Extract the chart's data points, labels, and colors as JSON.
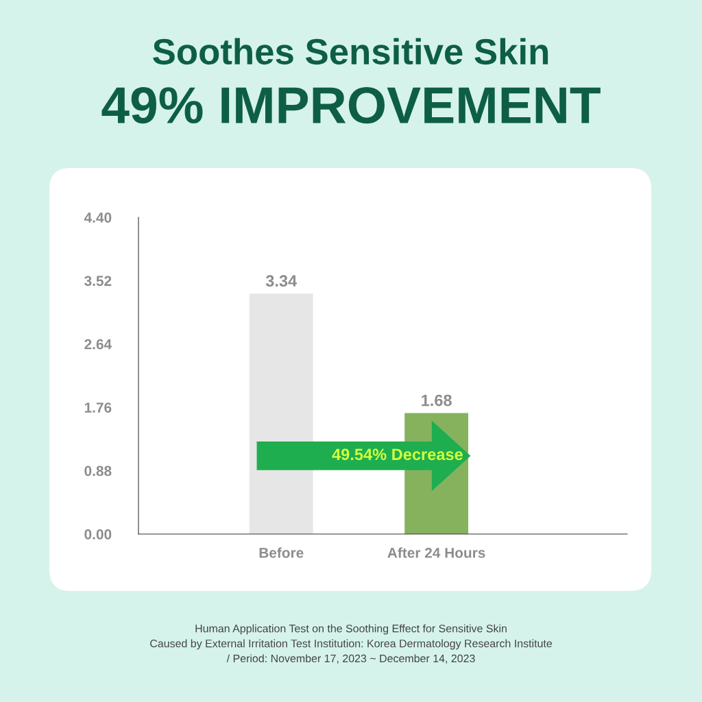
{
  "chart_data": {
    "type": "bar",
    "title": "Soothes Sensitive Skin",
    "subtitle": "49% IMPROVEMENT",
    "categories": [
      "Before",
      "After 24 Hours"
    ],
    "values": [
      3.34,
      1.68
    ],
    "colors": [
      "#e6e6e6",
      "#86b25e"
    ],
    "ylim": [
      0,
      4.4
    ],
    "yticks": [
      {
        "value": 0,
        "label": "0.00"
      },
      {
        "value": 0.88,
        "label": "0.88"
      },
      {
        "value": 1.76,
        "label": "1.76"
      },
      {
        "value": 2.64,
        "label": "2.64"
      },
      {
        "value": 3.52,
        "label": "3.52"
      },
      {
        "value": 4.4,
        "label": "4.40"
      }
    ],
    "data_labels": true,
    "grid": false,
    "legend": false,
    "annotations": [
      "49.54% Decrease",
      "Human Application Test on the Soothing Effect for Sensitive Skin\nCaused by External Irritation Test Institution: Korea Dermatology Research Institute\n/ Period: November 17, 2023 ~ December 14, 2023"
    ]
  }
}
